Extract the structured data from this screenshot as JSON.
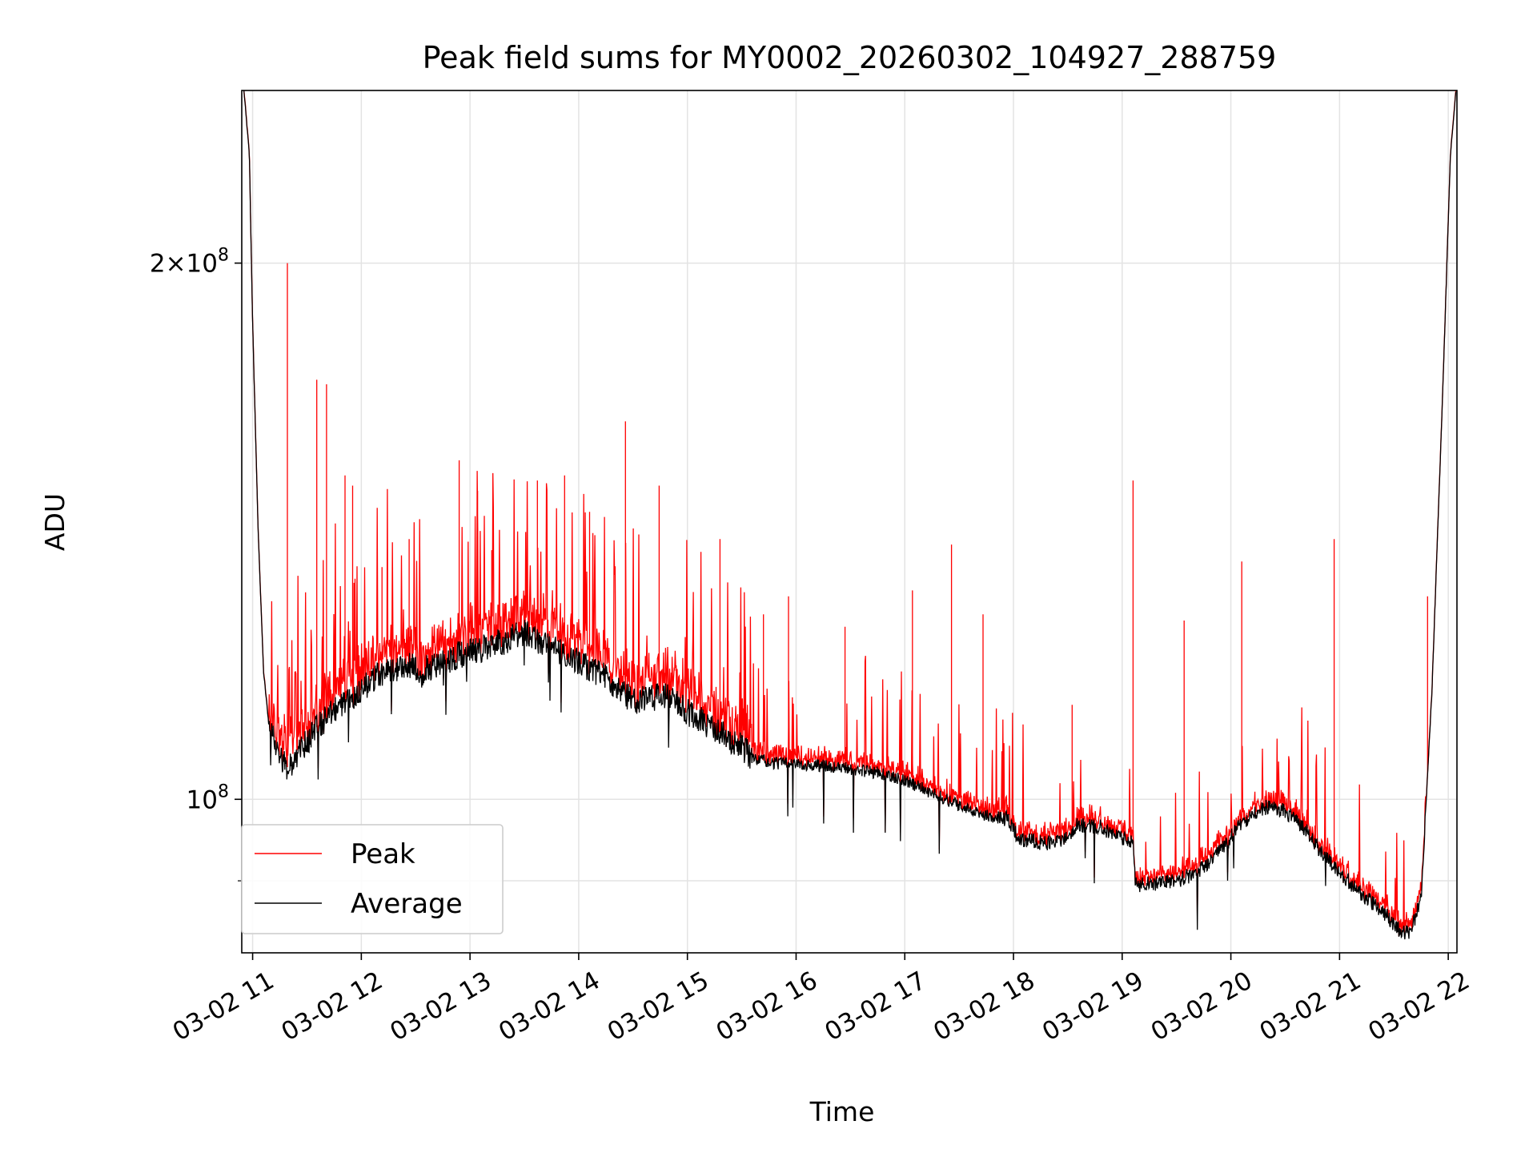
{
  "chart_data": {
    "type": "line",
    "title": "Peak field sums for MY0002_20260302_104927_288759",
    "xlabel": "Time",
    "ylabel": "ADU",
    "yscale": "log",
    "grid": true,
    "x_range_hours": [
      10.9,
      22.08
    ],
    "ylim": [
      82000000,
      250000000
    ],
    "x_ticks": [
      {
        "hour": 11,
        "label": "03-02 11"
      },
      {
        "hour": 12,
        "label": "03-02 12"
      },
      {
        "hour": 13,
        "label": "03-02 13"
      },
      {
        "hour": 14,
        "label": "03-02 14"
      },
      {
        "hour": 15,
        "label": "03-02 15"
      },
      {
        "hour": 16,
        "label": "03-02 16"
      },
      {
        "hour": 17,
        "label": "03-02 17"
      },
      {
        "hour": 18,
        "label": "03-02 18"
      },
      {
        "hour": 19,
        "label": "03-02 19"
      },
      {
        "hour": 20,
        "label": "03-02 20"
      },
      {
        "hour": 21,
        "label": "03-02 21"
      },
      {
        "hour": 22,
        "label": "03-02 22"
      }
    ],
    "y_major_ticks": [
      {
        "value": 100000000,
        "base": "10",
        "exp": "8",
        "mult": ""
      },
      {
        "value": 200000000,
        "base": "10",
        "exp": "8",
        "mult": "2×"
      }
    ],
    "y_minor_ticks": [
      90000000
    ],
    "legend_location": "lower left",
    "series": [
      {
        "name": "Peak",
        "color": "#ff0000"
      },
      {
        "name": "Average",
        "color": "#000000"
      }
    ],
    "baseline": [
      [
        10.92,
        250000000
      ],
      [
        10.97,
        230000000
      ],
      [
        11.0,
        185000000
      ],
      [
        11.05,
        142000000
      ],
      [
        11.1,
        118000000
      ],
      [
        11.15,
        110000000
      ],
      [
        11.25,
        106000000
      ],
      [
        11.33,
        104000000
      ],
      [
        11.6,
        110000000
      ],
      [
        11.9,
        114000000
      ],
      [
        12.2,
        118000000
      ],
      [
        12.5,
        119000000
      ],
      [
        12.55,
        115500000
      ],
      [
        12.6,
        118500000
      ],
      [
        12.9,
        120500000
      ],
      [
        13.2,
        122000000
      ],
      [
        13.5,
        124000000
      ],
      [
        13.7,
        122000000
      ],
      [
        14.0,
        119500000
      ],
      [
        14.3,
        116500000
      ],
      [
        14.5,
        113500000
      ],
      [
        14.8,
        114500000
      ],
      [
        15.0,
        112000000
      ],
      [
        15.3,
        109000000
      ],
      [
        15.5,
        107000000
      ],
      [
        15.6,
        105500000
      ],
      [
        15.8,
        104800000
      ],
      [
        16.2,
        104500000
      ],
      [
        16.5,
        104000000
      ],
      [
        16.8,
        103400000
      ],
      [
        17.0,
        102500000
      ],
      [
        17.3,
        100500000
      ],
      [
        17.5,
        99200000
      ],
      [
        17.7,
        98000000
      ],
      [
        17.95,
        97500000
      ],
      [
        18.05,
        95000000
      ],
      [
        18.3,
        94500000
      ],
      [
        18.45,
        95000000
      ],
      [
        18.6,
        96800000
      ],
      [
        18.8,
        96500000
      ],
      [
        19.0,
        95000000
      ],
      [
        19.1,
        94800000
      ],
      [
        19.12,
        89500000
      ],
      [
        19.5,
        90000000
      ],
      [
        19.7,
        91000000
      ],
      [
        19.9,
        93500000
      ],
      [
        20.1,
        97000000
      ],
      [
        20.3,
        99000000
      ],
      [
        20.5,
        98500000
      ],
      [
        20.7,
        96000000
      ],
      [
        20.85,
        93000000
      ],
      [
        21.0,
        91000000
      ],
      [
        21.2,
        88500000
      ],
      [
        21.4,
        86500000
      ],
      [
        21.55,
        84500000
      ],
      [
        21.65,
        84000000
      ],
      [
        21.75,
        88000000
      ],
      [
        21.85,
        115000000
      ],
      [
        21.95,
        170000000
      ],
      [
        22.02,
        230000000
      ],
      [
        22.07,
        250000000
      ]
    ],
    "spikes_hours_peak": [
      [
        11.32,
        200000000
      ],
      [
        11.59,
        172000000
      ],
      [
        11.68,
        171000000
      ],
      [
        11.85,
        152000000
      ],
      [
        11.92,
        150000000
      ],
      [
        12.19,
        135000000
      ],
      [
        12.44,
        140000000
      ],
      [
        12.9,
        155000000
      ],
      [
        13.07,
        149000000
      ],
      [
        13.2,
        138000000
      ],
      [
        13.62,
        151000000
      ],
      [
        13.87,
        152000000
      ],
      [
        14.1,
        145000000
      ],
      [
        14.43,
        163000000
      ],
      [
        14.74,
        150000000
      ],
      [
        15.3,
        140000000
      ],
      [
        15.7,
        127000000
      ],
      [
        15.93,
        130000000
      ],
      [
        16.45,
        125000000
      ],
      [
        17.07,
        131000000
      ],
      [
        17.43,
        139000000
      ],
      [
        17.72,
        127000000
      ],
      [
        18.54,
        113000000
      ],
      [
        19.1,
        151000000
      ],
      [
        19.57,
        126000000
      ],
      [
        20.1,
        136000000
      ],
      [
        20.95,
        140000000
      ],
      [
        21.81,
        130000000
      ]
    ]
  }
}
